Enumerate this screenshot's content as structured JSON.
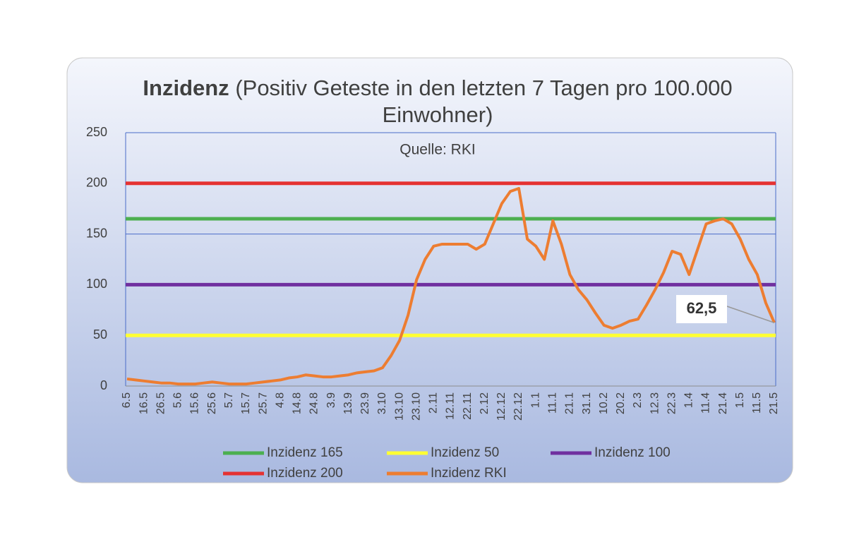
{
  "chart_data": {
    "type": "line",
    "title_bold": "Inzidenz",
    "title": "(Positiv Geteste in den letzten 7 Tagen pro 100.000 Einwohner)",
    "subtitle": "Quelle: RKI",
    "categories": [
      "6.5",
      null,
      "16.5",
      null,
      "26.5",
      null,
      "5.6",
      null,
      "15.6",
      null,
      "25.6",
      null,
      "5.7",
      null,
      "15.7",
      null,
      "25.7",
      null,
      "4.8",
      null,
      "14.8",
      null,
      "24.8",
      null,
      "3.9",
      null,
      "13.9",
      null,
      "23.9",
      null,
      "3.10",
      null,
      "13.10",
      null,
      "23.10",
      null,
      "2.11",
      null,
      "12.11",
      null,
      "22.11",
      null,
      "2.12",
      null,
      "12.12",
      null,
      "22.12",
      null,
      "1.1",
      null,
      "11.1",
      null,
      "21.1",
      null,
      "31.1",
      null,
      "10.2",
      null,
      "20.2",
      null,
      "2.3",
      null,
      "12.3",
      null,
      "22.3",
      null,
      "1.4",
      null,
      "11.4",
      null,
      "21.4",
      null,
      "1.5",
      null,
      "11.5",
      null,
      "21.5"
    ],
    "hlines": [
      {
        "name": "Inzidenz 165",
        "value": 165,
        "color": "#4caf50"
      },
      {
        "name": "Inzidenz 50",
        "value": 50,
        "color": "#ffff33"
      },
      {
        "name": "Inzidenz 100",
        "value": 100,
        "color": "#7030a0"
      },
      {
        "name": "Inzidenz 200",
        "value": 200,
        "color": "#e53232"
      }
    ],
    "series": [
      {
        "name": "Inzidenz RKI",
        "color": "#ed7d31",
        "values": [
          7,
          6,
          5,
          4,
          3,
          3,
          2,
          2,
          2,
          3,
          4,
          3,
          2,
          2,
          2,
          3,
          4,
          5,
          6,
          8,
          9,
          11,
          10,
          9,
          9,
          10,
          11,
          13,
          14,
          15,
          18,
          30,
          45,
          70,
          105,
          125,
          138,
          140,
          140,
          140,
          140,
          135,
          140,
          160,
          180,
          192,
          195,
          145,
          138,
          125,
          163,
          140,
          110,
          95,
          85,
          72,
          60,
          57,
          60,
          64,
          66,
          80,
          95,
          112,
          133,
          130,
          110,
          135,
          160,
          163,
          165,
          160,
          145,
          125,
          110,
          82,
          62.5
        ],
        "value_labels": [
          null,
          null,
          null,
          null,
          null,
          null,
          null,
          null,
          null,
          null,
          null,
          null,
          null,
          null,
          null,
          null,
          null,
          null,
          null,
          null,
          null,
          null,
          null,
          null,
          null,
          null,
          null,
          null,
          null,
          null,
          null,
          null,
          null,
          null,
          null,
          null,
          null,
          null,
          null,
          null,
          null,
          null,
          null,
          null,
          null,
          null,
          null,
          null,
          null,
          null,
          null,
          null,
          null,
          null,
          null,
          null,
          null,
          null,
          null,
          null,
          null,
          null,
          null,
          null,
          null,
          null,
          null,
          null,
          null,
          null,
          null,
          null,
          null,
          null,
          null,
          null,
          "62,5"
        ]
      }
    ],
    "ylim": [
      0,
      250
    ],
    "yticks": [
      0,
      50,
      100,
      150,
      200,
      250
    ],
    "grid": true
  }
}
